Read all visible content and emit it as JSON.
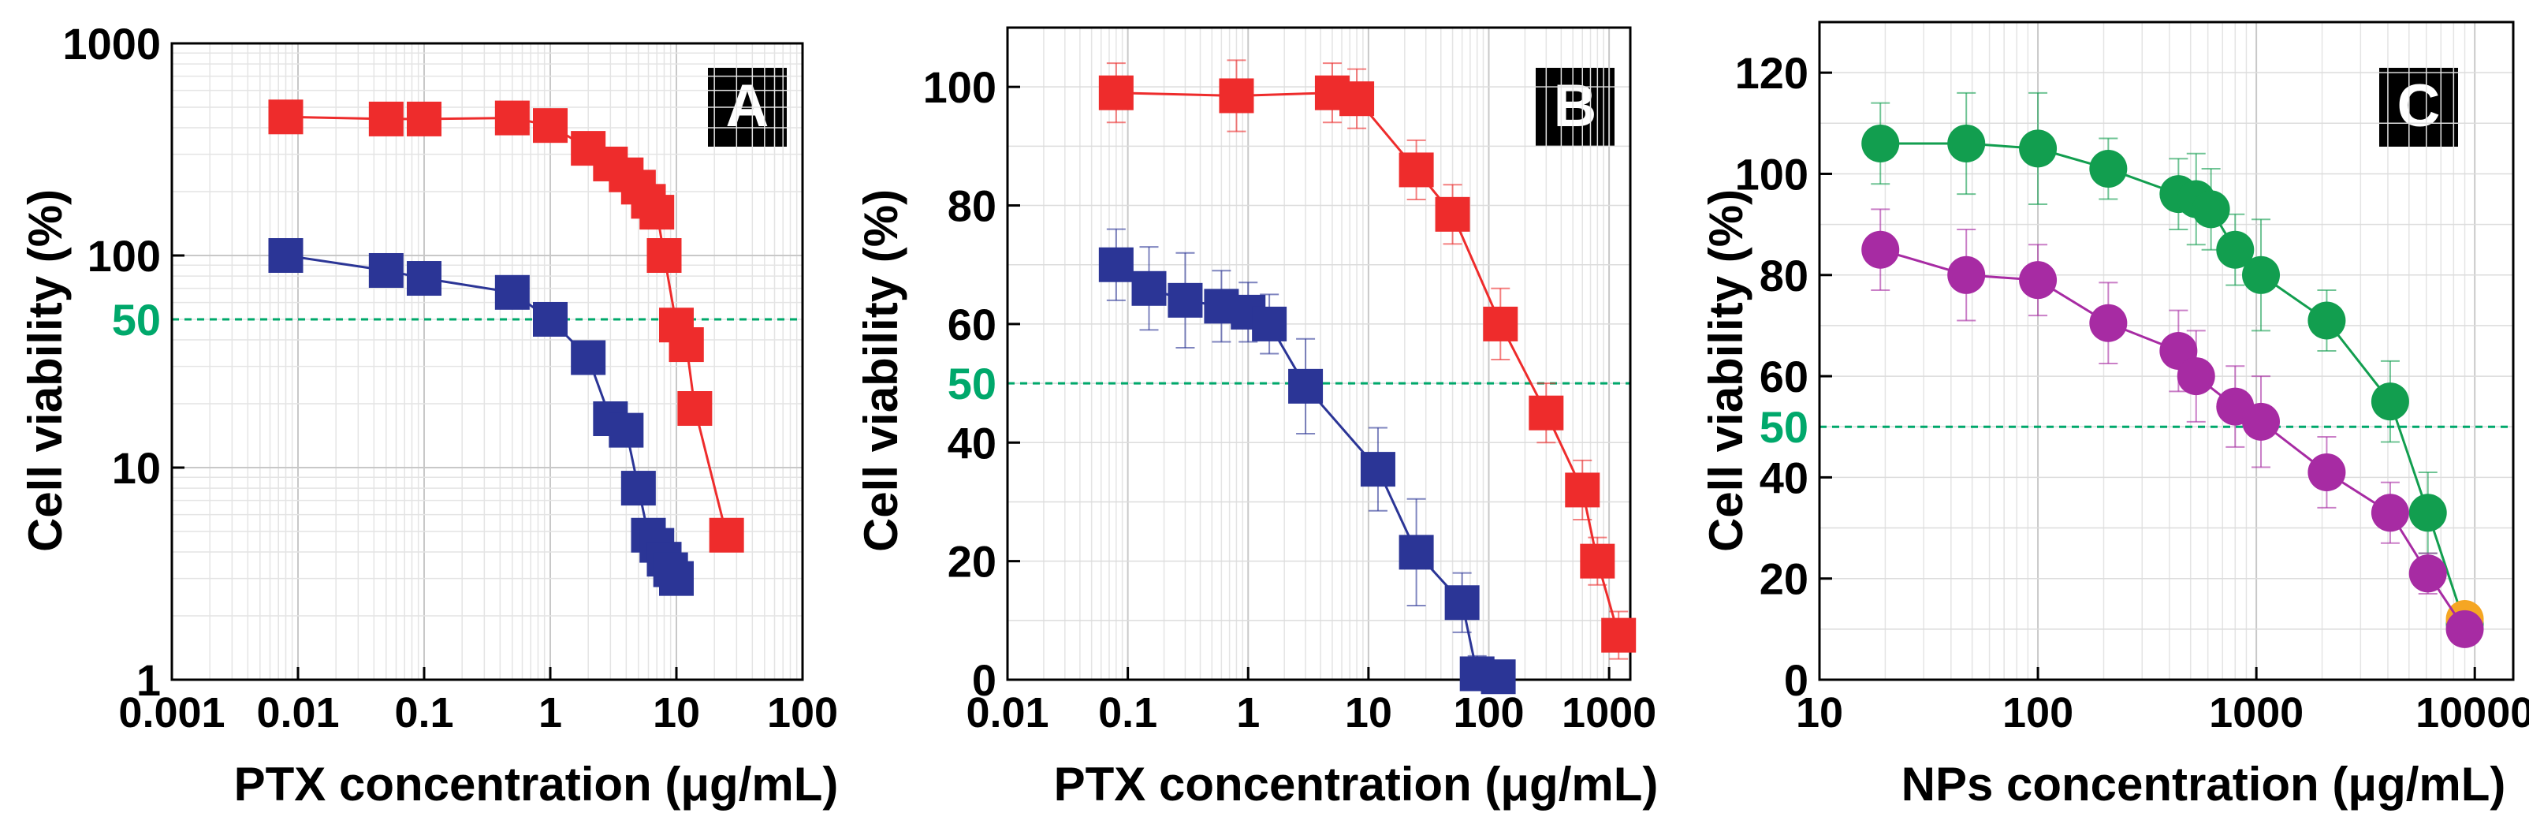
{
  "chart_data": [
    {
      "panel": "A",
      "type": "line",
      "xscale": "log",
      "yscale": "log",
      "xlabel": "PTX concentration (μg/mL)",
      "ylabel": "Cell viability (%)",
      "xlim": [
        0.001,
        100
      ],
      "ylim": [
        1,
        1000
      ],
      "xticks": [
        0.001,
        0.01,
        0.1,
        1,
        10,
        100
      ],
      "xtick_labels": [
        "0.001",
        "0.01",
        "0.1",
        "1",
        "10",
        "100"
      ],
      "yticks": [
        1,
        10,
        100,
        1000
      ],
      "ytick_labels": [
        "1",
        "10",
        "100",
        "1000"
      ],
      "grid": true,
      "reference_line": {
        "y": 50,
        "label": "50",
        "color": "#00a86b"
      },
      "series": [
        {
          "name": "red",
          "color": "#ee2c2c",
          "marker": "square",
          "x": [
            0.008,
            0.05,
            0.1,
            0.5,
            1,
            2,
            3,
            4,
            5,
            6,
            7,
            8,
            10,
            12
          ],
          "y": [
            450,
            440,
            440,
            445,
            410,
            320,
            270,
            240,
            210,
            180,
            160,
            100,
            47,
            38
          ]
        },
        {
          "name": "blue",
          "color": "#2b3596",
          "marker": "square",
          "x": [
            0.008,
            0.05,
            0.1,
            0.5,
            1,
            2,
            3,
            4,
            5,
            6,
            7,
            8,
            9,
            10
          ],
          "y": [
            100,
            85,
            78,
            67,
            50,
            33,
            17,
            15,
            8,
            4.8,
            4.3,
            3.7,
            3.3,
            3.0
          ]
        },
        {
          "name": "red-tail",
          "color": "#ee2c2c",
          "marker": "square",
          "x": [
            12,
            14,
            25
          ],
          "y": [
            38,
            19,
            4.8
          ]
        }
      ]
    },
    {
      "panel": "B",
      "type": "line",
      "xscale": "log",
      "yscale": "linear",
      "xlabel": "PTX concentration (μg/mL)",
      "ylabel": "Cell viability (%)",
      "xlim": [
        0.01,
        1500
      ],
      "ylim": [
        0,
        110
      ],
      "xticks": [
        0.01,
        0.1,
        1,
        10,
        100,
        1000
      ],
      "xtick_labels": [
        "0.01",
        "0.1",
        "1",
        "10",
        "100",
        "1000"
      ],
      "yticks": [
        0,
        20,
        40,
        60,
        80,
        100
      ],
      "ytick_labels": [
        "0",
        "20",
        "40",
        "60",
        "80",
        "100"
      ],
      "grid": true,
      "reference_line": {
        "y": 50,
        "label": "50",
        "color": "#00a86b"
      },
      "series": [
        {
          "name": "red",
          "color": "#ee2c2c",
          "marker": "square",
          "x": [
            0.08,
            0.8,
            5,
            8,
            25,
            50,
            125,
            300,
            600,
            800,
            1200
          ],
          "y": [
            99,
            98.5,
            99,
            98,
            86,
            78.5,
            60,
            45,
            32,
            20,
            7.5
          ],
          "err": [
            5,
            6,
            5,
            5,
            5,
            5,
            6,
            5,
            5,
            4,
            4
          ]
        },
        {
          "name": "blue",
          "color": "#2b3596",
          "marker": "square",
          "x": [
            0.08,
            0.15,
            0.3,
            0.6,
            1,
            1.5,
            3,
            12,
            25,
            60,
            80,
            120
          ],
          "y": [
            70,
            66,
            64,
            63,
            62,
            60,
            49.5,
            35.5,
            21.5,
            13,
            1,
            0.5
          ],
          "err": [
            6,
            7,
            8,
            6,
            5,
            5,
            8,
            7,
            9,
            5,
            3,
            2
          ]
        }
      ]
    },
    {
      "panel": "C",
      "type": "line",
      "xscale": "log",
      "yscale": "linear",
      "xlabel": "NPs concentration (μg/mL)",
      "ylabel": "Cell viability (%)",
      "xlim": [
        10,
        15000
      ],
      "ylim": [
        0,
        130
      ],
      "xticks": [
        10,
        100,
        1000,
        10000
      ],
      "xtick_labels": [
        "10",
        "100",
        "1000",
        "10000"
      ],
      "yticks": [
        0,
        20,
        40,
        60,
        80,
        100,
        120
      ],
      "ytick_labels": [
        "0",
        "20",
        "40",
        "60",
        "80",
        "100",
        "120"
      ],
      "grid": true,
      "reference_line": {
        "y": 50,
        "label": "50",
        "color": "#00a86b"
      },
      "series": [
        {
          "name": "green",
          "color": "#129e4f",
          "marker": "circle",
          "x": [
            19,
            47,
            100,
            210,
            440,
            530,
            620,
            800,
            1050,
            2100,
            4100,
            6100,
            9000
          ],
          "y": [
            106,
            106,
            105,
            101,
            96,
            95,
            93,
            85,
            80,
            71,
            55,
            33,
            11
          ],
          "err": [
            8,
            10,
            11,
            6,
            7,
            9,
            8,
            7,
            11,
            6,
            8,
            8,
            3
          ]
        },
        {
          "name": "magenta",
          "color": "#a72ba3",
          "marker": "circle",
          "x": [
            19,
            47,
            100,
            210,
            440,
            530,
            800,
            1050,
            2100,
            4100,
            6100,
            9000
          ],
          "y": [
            85,
            80,
            79,
            70.5,
            65,
            60,
            54,
            51,
            41,
            33,
            21,
            10
          ],
          "err": [
            8,
            9,
            7,
            8,
            8,
            9,
            8,
            9,
            7,
            6,
            4,
            2
          ]
        }
      ],
      "extra_points": [
        {
          "x": 9000,
          "y": 12,
          "color": "#f5a623"
        }
      ]
    }
  ],
  "panel_labels": [
    "A",
    "B",
    "C"
  ]
}
